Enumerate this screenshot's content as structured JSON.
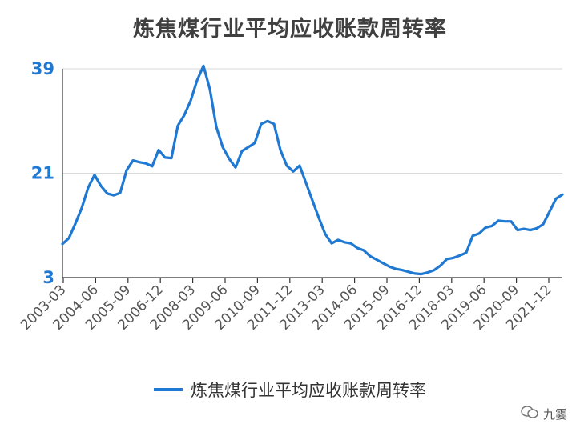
{
  "chart_data": {
    "type": "line",
    "title": "炼焦煤行业平均应收账款周转率",
    "xlabel": "",
    "ylabel": "",
    "ylim": [
      3,
      39
    ],
    "yticks": [
      3,
      21,
      39
    ],
    "grid": true,
    "legend_position": "bottom",
    "x_tick_labels": [
      "2003-03",
      "2004-06",
      "2005-09",
      "2006-12",
      "2008-03",
      "2009-06",
      "2010-09",
      "2011-12",
      "2013-03",
      "2014-06",
      "2015-09",
      "2016-12",
      "2018-03",
      "2019-06",
      "2020-09",
      "2021-12"
    ],
    "series": [
      {
        "name": "炼焦煤行业平均应收账款周转率",
        "color": "#1f78d1",
        "values": [
          8.8,
          9.8,
          12.3,
          15,
          18.5,
          20.7,
          18.8,
          17.5,
          17.2,
          17.6,
          21.5,
          23.2,
          22.9,
          22.7,
          22.2,
          25,
          23.7,
          23.6,
          29.2,
          31,
          33.5,
          37,
          39.5,
          35.5,
          29,
          25.5,
          23.5,
          22,
          24.8,
          25.5,
          26.2,
          29.5,
          30,
          29.5,
          25,
          22.3,
          21.3,
          22.3,
          19.3,
          16.3,
          13.3,
          10.5,
          8.9,
          9.5,
          9.1,
          8.9,
          8.1,
          7.7,
          6.7,
          6.1,
          5.5,
          4.9,
          4.5,
          4.3,
          4,
          3.7,
          3.6,
          3.9,
          4.3,
          5.1,
          6.2,
          6.4,
          6.8,
          7.3,
          10.2,
          10.6,
          11.6,
          11.9,
          12.8,
          12.7,
          12.7,
          11.2,
          11.4,
          11.2,
          11.5,
          12.2,
          14.4,
          16.6,
          17.3
        ]
      }
    ]
  },
  "legend": {
    "label": "炼焦煤行业平均应收账款周转率"
  },
  "watermark": {
    "text": "九霎",
    "icon": "chat-bubble-icon"
  }
}
